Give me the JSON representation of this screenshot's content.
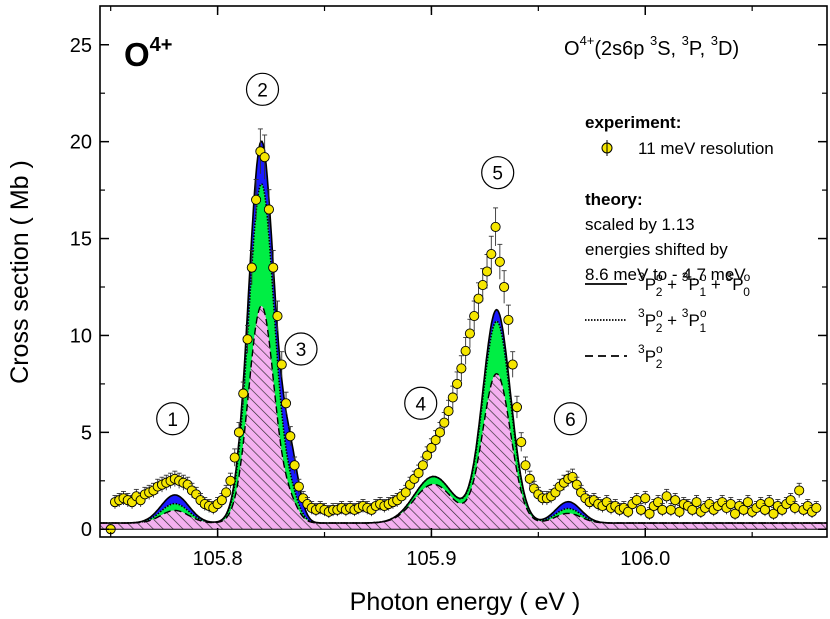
{
  "chart_data": {
    "type": "line",
    "title": "O4+",
    "xlabel": "Photon energy  ( eV )",
    "ylabel": "Cross section  ( Mb )",
    "xlim": [
      105.745,
      106.085
    ],
    "ylim": [
      -0.4,
      27
    ],
    "x_ticks": [
      "105.8",
      "105.9",
      "106.0"
    ],
    "y_ticks": [
      "0",
      "5",
      "10",
      "15",
      "20",
      "25"
    ],
    "annotation_main": "O4+",
    "annotation_config": "O4+(2s6p 3S, 3P, 3D)",
    "legend": {
      "experiment_header": "experiment:",
      "experiment_label": "11 meV resolution",
      "theory_header": "theory:",
      "theory_lines": [
        "scaled by 1.13",
        "energies shifted by",
        "8.6 meV to - 4.7 meV"
      ],
      "series_solid": "3P2o + 3P1o + 3P0o",
      "series_dotted": "3P2o + 3P1o",
      "series_dashed": "3P2o"
    },
    "peak_labels": [
      {
        "label": "1",
        "x": 105.779,
        "y": 5.7
      },
      {
        "label": "2",
        "x": 105.821,
        "y": 22.7
      },
      {
        "label": "3",
        "x": 105.839,
        "y": 9.3
      },
      {
        "label": "4",
        "x": 105.895,
        "y": 6.5
      },
      {
        "label": "5",
        "x": 105.931,
        "y": 18.4
      },
      {
        "label": "6",
        "x": 105.965,
        "y": 5.7
      }
    ],
    "theory_peaks": [
      {
        "name": "1",
        "center": 105.78,
        "width": 0.0065,
        "total": 1.45,
        "p21": 1.0,
        "p2": 0.65
      },
      {
        "name": "2",
        "center": 105.8205,
        "width": 0.006,
        "total": 19.7,
        "p21": 17.5,
        "p2": 11.2
      },
      {
        "name": "3",
        "center": 105.834,
        "width": 0.004,
        "total": 3.0,
        "p21": 1.2,
        "p2": 0.8
      },
      {
        "name": "4",
        "center": 105.901,
        "width": 0.009,
        "total": 2.4,
        "p21": 2.4,
        "p2": 2.0
      },
      {
        "name": "5",
        "center": 105.9305,
        "width": 0.0065,
        "total": 11.0,
        "p21": 10.4,
        "p2": 7.7
      },
      {
        "name": "6",
        "center": 105.964,
        "width": 0.006,
        "total": 1.1,
        "p21": 0.75,
        "p2": 0.5
      }
    ],
    "theory_background": 0.32,
    "experiment_points": [
      [
        105.75,
        0.0
      ],
      [
        105.752,
        1.4
      ],
      [
        105.754,
        1.5
      ],
      [
        105.756,
        1.6
      ],
      [
        105.758,
        1.5
      ],
      [
        105.76,
        1.4
      ],
      [
        105.762,
        1.7
      ],
      [
        105.764,
        1.5
      ],
      [
        105.766,
        1.8
      ],
      [
        105.768,
        1.9
      ],
      [
        105.77,
        2.0
      ],
      [
        105.772,
        2.2
      ],
      [
        105.774,
        2.3
      ],
      [
        105.776,
        2.4
      ],
      [
        105.778,
        2.5
      ],
      [
        105.78,
        2.6
      ],
      [
        105.782,
        2.5
      ],
      [
        105.784,
        2.4
      ],
      [
        105.786,
        2.3
      ],
      [
        105.788,
        2.0
      ],
      [
        105.79,
        1.8
      ],
      [
        105.792,
        1.5
      ],
      [
        105.794,
        1.3
      ],
      [
        105.796,
        1.2
      ],
      [
        105.798,
        1.1
      ],
      [
        105.8,
        1.3
      ],
      [
        105.802,
        1.5
      ],
      [
        105.804,
        1.9
      ],
      [
        105.806,
        2.5
      ],
      [
        105.808,
        3.7
      ],
      [
        105.81,
        5.0
      ],
      [
        105.812,
        7.0
      ],
      [
        105.814,
        9.8
      ],
      [
        105.816,
        13.5
      ],
      [
        105.818,
        17.0
      ],
      [
        105.82,
        19.5
      ],
      [
        105.822,
        19.2
      ],
      [
        105.824,
        16.5
      ],
      [
        105.826,
        13.5
      ],
      [
        105.828,
        11.0
      ],
      [
        105.83,
        8.5
      ],
      [
        105.832,
        6.5
      ],
      [
        105.834,
        4.8
      ],
      [
        105.836,
        3.3
      ],
      [
        105.838,
        2.2
      ],
      [
        105.84,
        1.6
      ],
      [
        105.842,
        1.3
      ],
      [
        105.844,
        1.1
      ],
      [
        105.846,
        1.0
      ],
      [
        105.848,
        1.1
      ],
      [
        105.85,
        1.0
      ],
      [
        105.852,
        0.9
      ],
      [
        105.854,
        1.0
      ],
      [
        105.856,
        1.0
      ],
      [
        105.858,
        1.1
      ],
      [
        105.86,
        1.0
      ],
      [
        105.862,
        1.1
      ],
      [
        105.864,
        1.0
      ],
      [
        105.866,
        1.1
      ],
      [
        105.868,
        1.2
      ],
      [
        105.87,
        1.1
      ],
      [
        105.872,
        1.0
      ],
      [
        105.874,
        1.2
      ],
      [
        105.876,
        1.3
      ],
      [
        105.878,
        1.2
      ],
      [
        105.88,
        1.3
      ],
      [
        105.882,
        1.4
      ],
      [
        105.884,
        1.5
      ],
      [
        105.886,
        1.7
      ],
      [
        105.888,
        1.9
      ],
      [
        105.89,
        2.3
      ],
      [
        105.892,
        2.6
      ],
      [
        105.894,
        2.9
      ],
      [
        105.896,
        3.3
      ],
      [
        105.898,
        3.8
      ],
      [
        105.9,
        4.2
      ],
      [
        105.902,
        4.6
      ],
      [
        105.904,
        5.0
      ],
      [
        105.906,
        5.5
      ],
      [
        105.908,
        6.1
      ],
      [
        105.91,
        6.8
      ],
      [
        105.912,
        7.5
      ],
      [
        105.914,
        8.3
      ],
      [
        105.916,
        9.2
      ],
      [
        105.918,
        10.1
      ],
      [
        105.92,
        11.0
      ],
      [
        105.922,
        11.9
      ],
      [
        105.924,
        12.6
      ],
      [
        105.926,
        13.3
      ],
      [
        105.928,
        14.2
      ],
      [
        105.93,
        15.6
      ],
      [
        105.932,
        13.8
      ],
      [
        105.934,
        12.5
      ],
      [
        105.936,
        10.8
      ],
      [
        105.938,
        8.5
      ],
      [
        105.94,
        6.3
      ],
      [
        105.942,
        4.5
      ],
      [
        105.944,
        3.3
      ],
      [
        105.946,
        2.6
      ],
      [
        105.948,
        2.1
      ],
      [
        105.95,
        1.8
      ],
      [
        105.952,
        1.6
      ],
      [
        105.954,
        1.6
      ],
      [
        105.956,
        1.7
      ],
      [
        105.958,
        1.9
      ],
      [
        105.96,
        2.2
      ],
      [
        105.962,
        2.4
      ],
      [
        105.964,
        2.6
      ],
      [
        105.966,
        2.7
      ],
      [
        105.968,
        2.3
      ],
      [
        105.97,
        1.9
      ],
      [
        105.972,
        1.6
      ],
      [
        105.974,
        1.4
      ],
      [
        105.976,
        1.5
      ],
      [
        105.978,
        1.3
      ],
      [
        105.98,
        1.2
      ],
      [
        105.982,
        1.4
      ],
      [
        105.984,
        1.1
      ],
      [
        105.986,
        1.2
      ],
      [
        105.988,
        1.0
      ],
      [
        105.99,
        1.1
      ],
      [
        105.992,
        0.9
      ],
      [
        105.994,
        1.3
      ],
      [
        105.996,
        1.5
      ],
      [
        105.998,
        1.0
      ],
      [
        106.0,
        1.6
      ],
      [
        106.002,
        0.8
      ],
      [
        106.004,
        1.2
      ],
      [
        106.006,
        1.4
      ],
      [
        106.008,
        1.0
      ],
      [
        106.01,
        1.7
      ],
      [
        106.012,
        1.0
      ],
      [
        106.014,
        1.5
      ],
      [
        106.016,
        0.9
      ],
      [
        106.018,
        1.3
      ],
      [
        106.02,
        1.2
      ],
      [
        106.022,
        1.0
      ],
      [
        106.024,
        1.4
      ],
      [
        106.026,
        0.9
      ],
      [
        106.028,
        1.1
      ],
      [
        106.03,
        1.3
      ],
      [
        106.032,
        1.0
      ],
      [
        106.034,
        1.2
      ],
      [
        106.036,
        1.4
      ],
      [
        106.038,
        1.1
      ],
      [
        106.04,
        1.3
      ],
      [
        106.042,
        0.8
      ],
      [
        106.044,
        1.2
      ],
      [
        106.046,
        1.0
      ],
      [
        106.048,
        1.4
      ],
      [
        106.05,
        0.9
      ],
      [
        106.052,
        1.1
      ],
      [
        106.054,
        1.3
      ],
      [
        106.056,
        1.0
      ],
      [
        106.058,
        1.4
      ],
      [
        106.06,
        0.8
      ],
      [
        106.062,
        1.2
      ],
      [
        106.064,
        1.0
      ],
      [
        106.066,
        1.3
      ],
      [
        106.068,
        1.5
      ],
      [
        106.07,
        1.1
      ],
      [
        106.072,
        2.0
      ],
      [
        106.074,
        1.0
      ],
      [
        106.076,
        1.2
      ],
      [
        106.078,
        0.9
      ],
      [
        106.08,
        1.1
      ]
    ],
    "colors": {
      "experiment_fill": "#f5e600",
      "band_green": "#00ee44",
      "band_blue": "#1a1aff",
      "hatch_fill": "#f4b0f0",
      "hatch_line": "#2a2a2a"
    },
    "grid": false
  }
}
